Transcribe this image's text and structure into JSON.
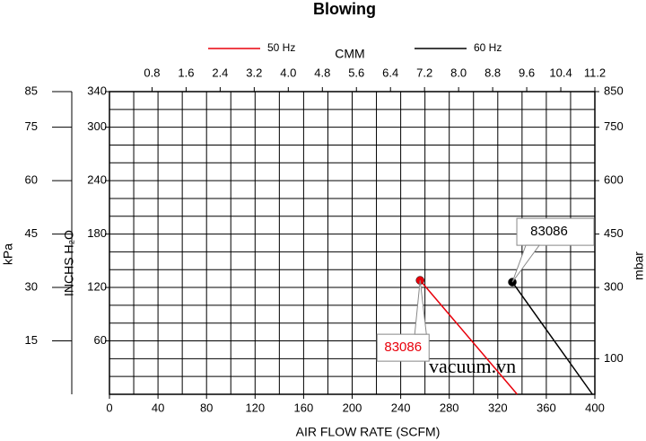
{
  "chart_data": {
    "type": "line",
    "title": "Blowing",
    "xlabel": "AIR FLOW RATE (SCFM)",
    "x2label": "CMM",
    "ylabel": "INCHS H₂O",
    "y2label": "mbar",
    "y3label": "kPa",
    "xlim": [
      0,
      400
    ],
    "xticks": [
      0,
      40,
      80,
      120,
      160,
      200,
      240,
      280,
      320,
      360,
      400
    ],
    "xgrid": [
      0,
      20,
      40,
      60,
      80,
      100,
      120,
      140,
      160,
      180,
      200,
      220,
      240,
      260,
      280,
      300,
      320,
      340,
      360,
      380,
      400
    ],
    "x2lim": [
      -0.2,
      11.2
    ],
    "x2ticks": [
      0.8,
      1.6,
      2.4,
      3.2,
      {
        "value": 4,
        "label": "4.0"
      },
      4.8,
      5.6,
      6.4,
      7.2,
      {
        "value": 8,
        "label": "8.0"
      },
      8.8,
      9.6,
      10.4,
      11.2
    ],
    "ylim": [
      0,
      340
    ],
    "yticks": [
      60,
      120,
      180,
      240,
      300,
      340
    ],
    "ygrid": [
      0,
      20,
      40,
      60,
      80,
      100,
      120,
      140,
      160,
      180,
      200,
      220,
      240,
      260,
      280,
      300,
      320,
      340
    ],
    "y2lim": [
      0,
      850
    ],
    "y2ticks": [
      100,
      300,
      450,
      600,
      750,
      850
    ],
    "y3lim": [
      0,
      85
    ],
    "y3ticks": [
      15,
      30,
      45,
      60,
      75,
      85
    ],
    "grid": true,
    "legend": "top",
    "series": [
      {
        "name": "50 Hz",
        "color": "#e8000b",
        "x": [
          256,
          336
        ],
        "values": [
          128,
          0
        ],
        "label": "83086"
      },
      {
        "name": "60 Hz",
        "color": "#000000",
        "x": [
          332,
          398
        ],
        "values": [
          126,
          0
        ],
        "label": "83086"
      }
    ],
    "watermark": "vacuum.vn"
  }
}
